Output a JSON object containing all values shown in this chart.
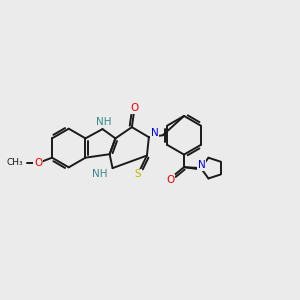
{
  "background_color": "#ebebeb",
  "bond_color": "#1a1a1a",
  "atom_colors": {
    "N": "#0000ee",
    "O": "#ee0000",
    "S": "#bbbb00",
    "C": "#1a1a1a",
    "NH": "#3a8a8a"
  },
  "figsize": [
    3.0,
    3.0
  ],
  "dpi": 100,
  "lw": 1.4
}
